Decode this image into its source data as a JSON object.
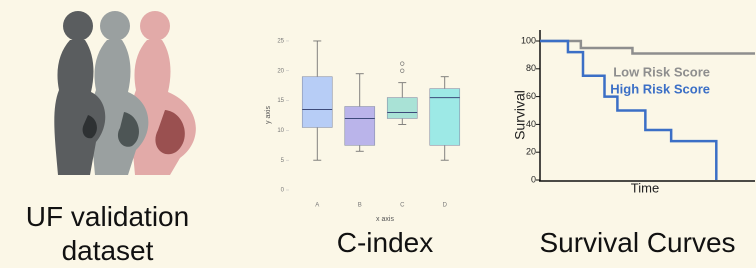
{
  "captions": [
    "UF validation dataset",
    "C-index",
    "Survival Curves"
  ],
  "chart_data": [
    {
      "type": "box",
      "x_label": "x axis",
      "y_label": "y axis",
      "categories": [
        "A",
        "B",
        "C",
        "D"
      ],
      "boxes": [
        {
          "min": 5,
          "q1": 10.5,
          "median": 13.5,
          "q3": 19,
          "max": 25,
          "outliers": [],
          "color": "#b7cdf6"
        },
        {
          "min": 6.5,
          "q1": 7.5,
          "median": 12,
          "q3": 14,
          "max": 19.5,
          "outliers": [],
          "color": "#bab4ea"
        },
        {
          "min": 11,
          "q1": 12,
          "median": 13,
          "q3": 15.5,
          "max": 18,
          "outliers": [
            20,
            21.2
          ],
          "color": "#a9e2d6"
        },
        {
          "min": 5,
          "q1": 7.5,
          "median": 15.5,
          "q3": 17,
          "max": 19,
          "outliers": [],
          "color": "#9de9e6"
        }
      ],
      "ylim": [
        0,
        26
      ],
      "yticks": [
        0,
        5,
        10,
        15,
        20,
        25
      ]
    },
    {
      "type": "step",
      "x_label": "Time",
      "y_label": "Survival",
      "xlim": [
        0,
        10
      ],
      "ylim": [
        0,
        100
      ],
      "yticks": [
        0,
        20,
        40,
        60,
        80,
        100
      ],
      "series": [
        {
          "name": "Low Risk Score",
          "color": "#8e8e8e",
          "x": [
            0,
            1.9,
            4.3,
            10
          ],
          "values": [
            100,
            95,
            91,
            91
          ]
        },
        {
          "name": "High Risk Score",
          "color": "#3b6fc6",
          "x": [
            0,
            1.3,
            2,
            3,
            3.6,
            4.9,
            6.1,
            8.2
          ],
          "values": [
            100,
            92,
            75,
            60,
            50,
            36,
            28,
            0
          ]
        }
      ]
    }
  ]
}
